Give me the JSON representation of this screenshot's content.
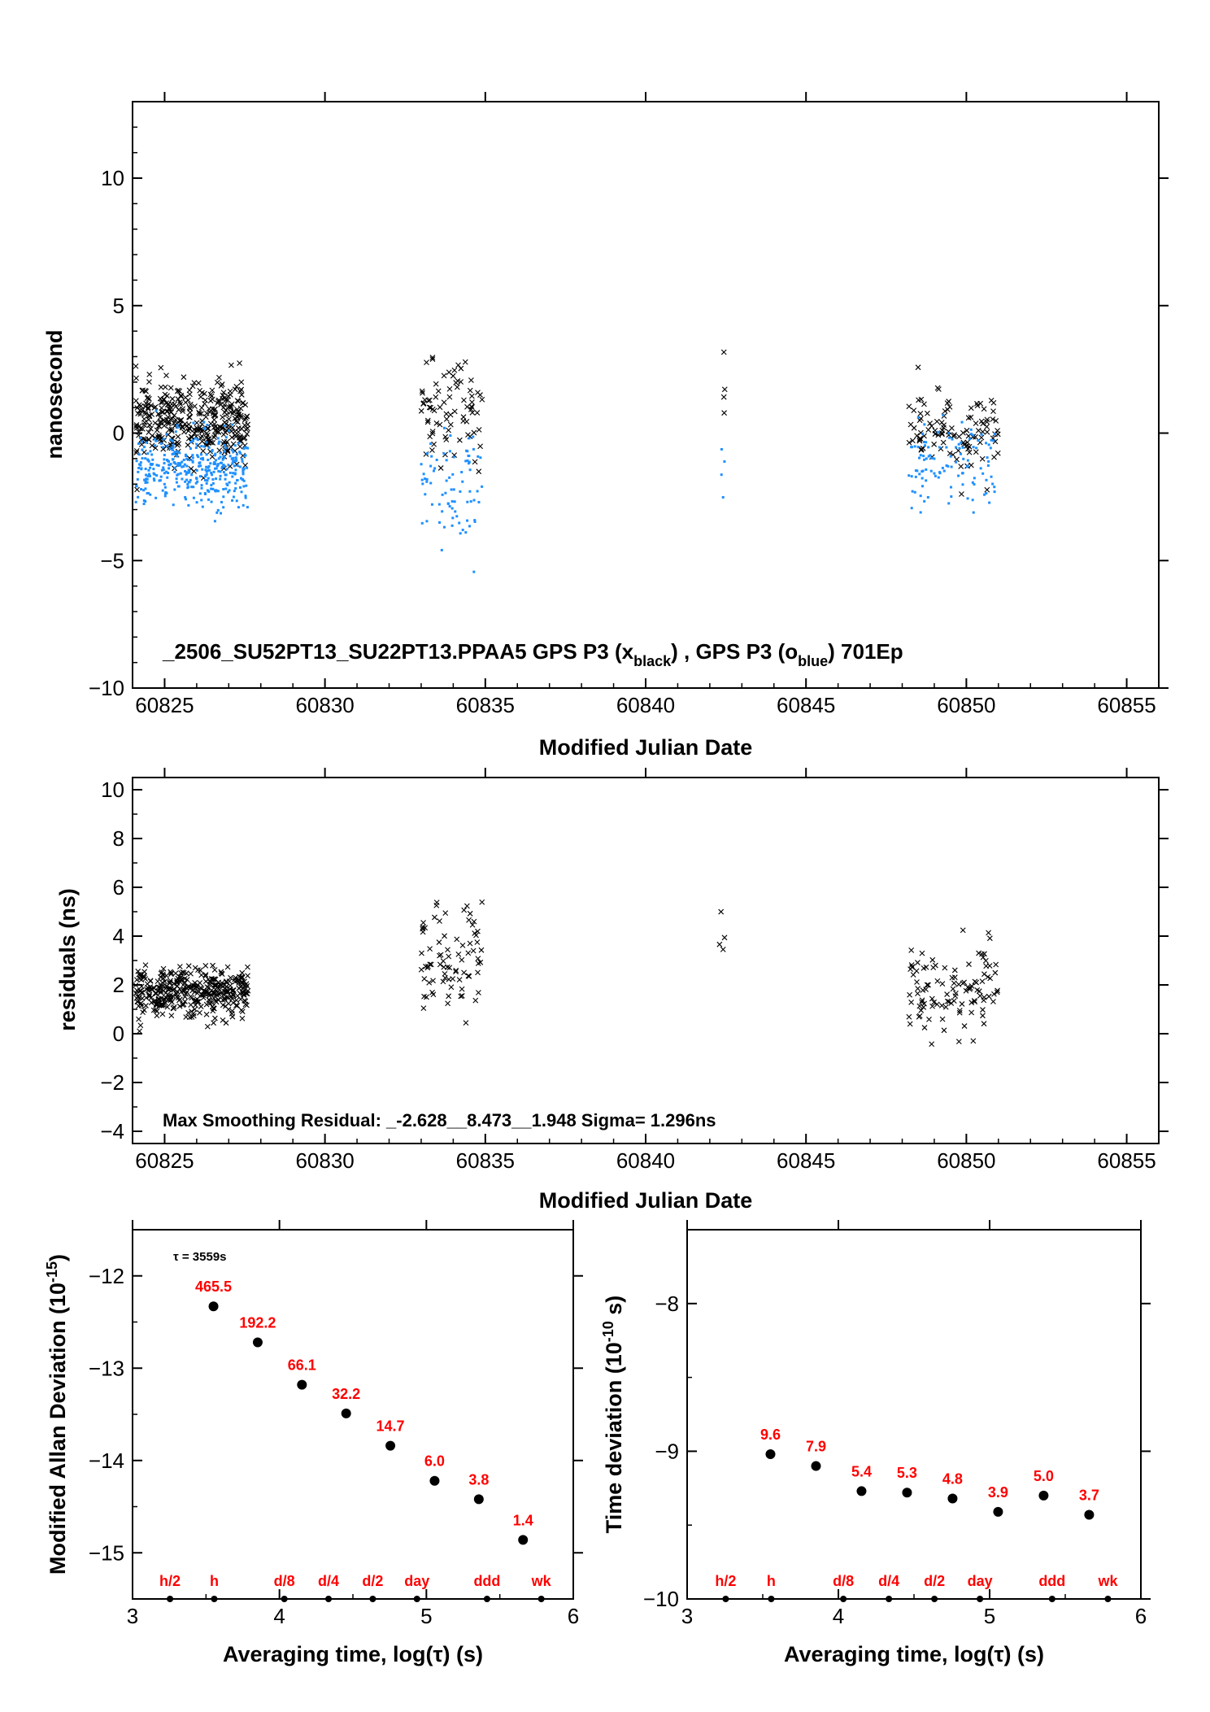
{
  "chart_data": [
    {
      "type": "scatter",
      "title": "",
      "annotation_parts": [
        "_2506_SU52PT13_SU22PT13.PPAA5     GPS P3 (x",
        "black",
        ") ,  GPS P3 (o",
        "blue",
        ")  701Ep"
      ],
      "xlabel": "Modified Julian Date",
      "ylabel": "nanosecond",
      "xlim": [
        60824,
        60856
      ],
      "ylim": [
        -10,
        13
      ],
      "xticks": [
        60825,
        60830,
        60835,
        60840,
        60845,
        60850,
        60855
      ],
      "yticks": [
        -10,
        -5,
        0,
        5,
        10
      ],
      "grid": false,
      "series": [
        {
          "color": "#000000",
          "marker": "x",
          "clusters": [
            {
              "x_range": [
                60824.1,
                60827.6
              ],
              "y_mean": 0.5,
              "y_spread": 1.3,
              "count": 380
            },
            {
              "x_range": [
                60833.0,
                60834.9
              ],
              "y_mean": 0.8,
              "y_spread": 1.5,
              "count": 80
            },
            {
              "x_range": [
                60842.3,
                60842.5
              ],
              "y_mean": 1.8,
              "y_spread": 1.2,
              "count": 4
            },
            {
              "x_range": [
                60848.2,
                60851.0
              ],
              "y_mean": 0.0,
              "y_spread": 1.4,
              "count": 110
            }
          ]
        },
        {
          "color": "#1e90ff",
          "marker": "o",
          "clusters": [
            {
              "x_range": [
                60824.1,
                60827.6
              ],
              "y_mean": -1.4,
              "y_spread": 1.2,
              "count": 380
            },
            {
              "x_range": [
                60833.0,
                60834.9
              ],
              "y_mean": -2.3,
              "y_spread": 2.0,
              "count": 80
            },
            {
              "x_range": [
                60842.3,
                60842.5
              ],
              "y_mean": -2.0,
              "y_spread": 1.5,
              "count": 4
            },
            {
              "x_range": [
                60848.2,
                60851.0
              ],
              "y_mean": -1.3,
              "y_spread": 1.5,
              "count": 110
            }
          ]
        }
      ]
    },
    {
      "type": "scatter",
      "title": "",
      "annotation": "Max Smoothing Residual: _-2.628__8.473__1.948  Sigma= 1.296ns",
      "xlabel": "Modified Julian Date",
      "ylabel": "residuals (ns)",
      "xlim": [
        60824,
        60856
      ],
      "ylim": [
        -4.5,
        10.5
      ],
      "xticks": [
        60825,
        60830,
        60835,
        60840,
        60845,
        60850,
        60855
      ],
      "yticks": [
        -4,
        -2,
        0,
        2,
        4,
        6,
        8,
        10
      ],
      "grid": false,
      "series": [
        {
          "color": "#000000",
          "marker": "x",
          "clusters": [
            {
              "x_range": [
                60824.1,
                60827.6
              ],
              "y_mean": 1.7,
              "y_spread": 0.8,
              "count": 380
            },
            {
              "x_range": [
                60833.0,
                60834.9
              ],
              "y_mean": 3.0,
              "y_spread": 2.0,
              "count": 80
            },
            {
              "x_range": [
                60842.3,
                60842.5
              ],
              "y_mean": 4.0,
              "y_spread": 1.2,
              "count": 4
            },
            {
              "x_range": [
                60848.2,
                60851.0
              ],
              "y_mean": 1.8,
              "y_spread": 1.5,
              "count": 110
            }
          ]
        }
      ]
    },
    {
      "type": "scatter",
      "title": "",
      "note": "τ = 3559s",
      "xlabel": "Averaging time, log(τ) (s)",
      "ylabel": "Modified Allan Deviation (10-15)",
      "xlim": [
        3,
        6
      ],
      "ylim": [
        -15.5,
        -11.5
      ],
      "xticks": [
        3,
        4,
        5,
        6
      ],
      "yticks": [
        -15,
        -14,
        -13,
        -12
      ],
      "grid": false,
      "points": [
        {
          "x": 3.551,
          "y": -12.33,
          "label": "465.5"
        },
        {
          "x": 3.852,
          "y": -12.72,
          "label": "192.2"
        },
        {
          "x": 4.153,
          "y": -13.18,
          "label": "66.1"
        },
        {
          "x": 4.454,
          "y": -13.49,
          "label": "32.2"
        },
        {
          "x": 4.755,
          "y": -13.84,
          "label": "14.7"
        },
        {
          "x": 5.056,
          "y": -14.22,
          "label": "6.0"
        },
        {
          "x": 5.357,
          "y": -14.42,
          "label": "3.8"
        },
        {
          "x": 5.658,
          "y": -14.86,
          "label": "1.4"
        }
      ],
      "markers": [
        {
          "x": 3.255,
          "label": "h/2"
        },
        {
          "x": 3.556,
          "label": "h"
        },
        {
          "x": 4.033,
          "label": "d/8"
        },
        {
          "x": 4.334,
          "label": "d/4"
        },
        {
          "x": 4.635,
          "label": "d/2"
        },
        {
          "x": 4.936,
          "label": "day"
        },
        {
          "x": 5.413,
          "label": "ddd"
        },
        {
          "x": 5.782,
          "label": "wk"
        }
      ]
    },
    {
      "type": "scatter",
      "title": "",
      "xlabel": "Averaging time, log(τ) (s)",
      "ylabel": "Time deviation (10-10 s)",
      "xlim": [
        3,
        6
      ],
      "ylim": [
        -10,
        -7.5
      ],
      "xticks": [
        3,
        4,
        5,
        6
      ],
      "yticks": [
        -10,
        -9,
        -8
      ],
      "grid": false,
      "points": [
        {
          "x": 3.551,
          "y": -9.02,
          "label": "9.6"
        },
        {
          "x": 3.852,
          "y": -9.1,
          "label": "7.9"
        },
        {
          "x": 4.153,
          "y": -9.27,
          "label": "5.4"
        },
        {
          "x": 4.454,
          "y": -9.28,
          "label": "5.3"
        },
        {
          "x": 4.755,
          "y": -9.32,
          "label": "4.8"
        },
        {
          "x": 5.056,
          "y": -9.41,
          "label": "3.9"
        },
        {
          "x": 5.357,
          "y": -9.3,
          "label": "5.0"
        },
        {
          "x": 5.658,
          "y": -9.43,
          "label": "3.7"
        }
      ],
      "markers": [
        {
          "x": 3.255,
          "label": "h/2"
        },
        {
          "x": 3.556,
          "label": "h"
        },
        {
          "x": 4.033,
          "label": "d/8"
        },
        {
          "x": 4.334,
          "label": "d/4"
        },
        {
          "x": 4.635,
          "label": "d/2"
        },
        {
          "x": 4.936,
          "label": "day"
        },
        {
          "x": 5.413,
          "label": "ddd"
        },
        {
          "x": 5.782,
          "label": "wk"
        }
      ]
    }
  ]
}
